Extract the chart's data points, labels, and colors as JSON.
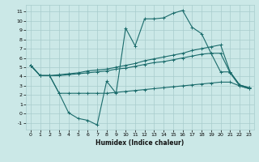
{
  "bg_color": "#cbe8e7",
  "grid_color": "#a8cccc",
  "line_color": "#1a6b6b",
  "line1_x": [
    0,
    1,
    2,
    3,
    4,
    5,
    6,
    7,
    8,
    9,
    10,
    11,
    12,
    13,
    14,
    15,
    16,
    17,
    18,
    19,
    20,
    21,
    22,
    23
  ],
  "line1_y": [
    5.2,
    4.1,
    4.1,
    2.2,
    0.1,
    -0.5,
    -0.7,
    -1.2,
    3.5,
    2.2,
    9.2,
    7.3,
    10.2,
    10.2,
    10.3,
    10.8,
    11.1,
    9.3,
    8.6,
    6.5,
    4.5,
    4.5,
    3.1,
    2.8
  ],
  "line2_x": [
    0,
    1,
    2,
    3,
    4,
    5,
    6,
    7,
    8,
    9,
    10,
    11,
    12,
    13,
    14,
    15,
    16,
    17,
    18,
    19,
    20,
    21,
    22,
    23
  ],
  "line2_y": [
    5.2,
    4.1,
    4.1,
    4.2,
    4.3,
    4.4,
    4.6,
    4.7,
    4.8,
    5.0,
    5.2,
    5.4,
    5.7,
    5.9,
    6.1,
    6.3,
    6.5,
    6.8,
    7.0,
    7.2,
    7.4,
    4.5,
    3.1,
    2.8
  ],
  "line3_x": [
    0,
    1,
    2,
    3,
    4,
    5,
    6,
    7,
    8,
    9,
    10,
    11,
    12,
    13,
    14,
    15,
    16,
    17,
    18,
    19,
    20,
    21,
    22,
    23
  ],
  "line3_y": [
    5.2,
    4.1,
    4.1,
    4.1,
    4.2,
    4.3,
    4.4,
    4.5,
    4.6,
    4.8,
    4.9,
    5.1,
    5.3,
    5.5,
    5.6,
    5.8,
    6.0,
    6.2,
    6.4,
    6.5,
    6.5,
    4.4,
    3.0,
    2.7
  ],
  "line4_x": [
    0,
    1,
    2,
    3,
    4,
    5,
    6,
    7,
    8,
    9,
    10,
    11,
    12,
    13,
    14,
    15,
    16,
    17,
    18,
    19,
    20,
    21,
    22,
    23
  ],
  "line4_y": [
    5.2,
    4.1,
    4.1,
    2.2,
    2.2,
    2.2,
    2.2,
    2.2,
    2.2,
    2.3,
    2.4,
    2.5,
    2.6,
    2.7,
    2.8,
    2.9,
    3.0,
    3.1,
    3.2,
    3.3,
    3.4,
    3.4,
    3.0,
    2.7
  ],
  "xlabel": "Humidex (Indice chaleur)",
  "xlim": [
    -0.5,
    23.5
  ],
  "ylim": [
    -1.7,
    11.7
  ],
  "xticks": [
    0,
    1,
    2,
    3,
    4,
    5,
    6,
    7,
    8,
    9,
    10,
    11,
    12,
    13,
    14,
    15,
    16,
    17,
    18,
    19,
    20,
    21,
    22,
    23
  ],
  "yticks": [
    -1,
    0,
    1,
    2,
    3,
    4,
    5,
    6,
    7,
    8,
    9,
    10,
    11
  ]
}
